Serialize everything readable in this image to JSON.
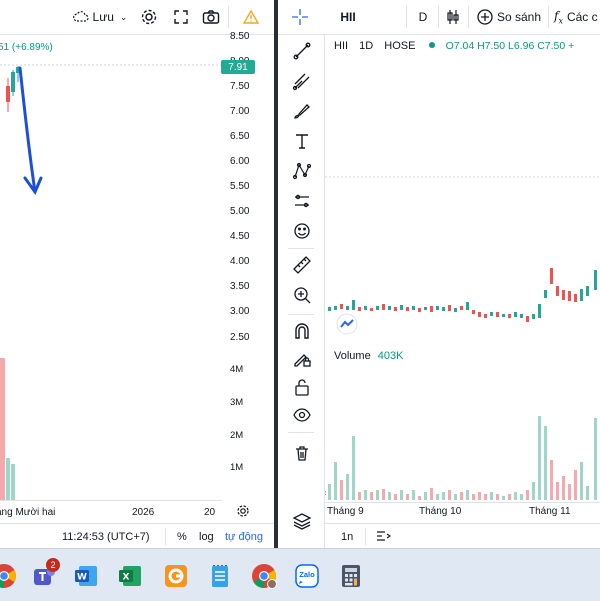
{
  "left": {
    "toolbar": {
      "save_label": "Lưu"
    },
    "legend": {
      "change": "51 (+6.89%)"
    },
    "price_axis": [
      "8.50",
      "8.00",
      "7.50",
      "7.00",
      "6.50",
      "6.00",
      "5.50",
      "5.00",
      "4.50",
      "4.00",
      "3.50",
      "3.00",
      "2.50"
    ],
    "current_price": "7.91",
    "volume_axis": [
      "4M",
      "3M",
      "2M",
      "1M"
    ],
    "time_axis": [
      "áng Mười hai",
      "2026",
      "20"
    ],
    "status": {
      "time": "11:24:53 (UTC+7)",
      "percent": "%",
      "log": "log",
      "auto": "tự động"
    }
  },
  "right": {
    "toolbar": {
      "symbol": "HII",
      "interval": "D",
      "compare_label": "So sánh",
      "indicators_label": "Các c"
    },
    "legend": {
      "symbol": "HII",
      "interval": "1D",
      "exchange": "HOSE",
      "ohlc": "O7.04 H7.50 L6.96 C7.50 +"
    },
    "volume_label": "Volume",
    "volume_value": "403K",
    "time_axis": [
      "Tháng 9",
      "Tháng 10",
      "Tháng 11"
    ],
    "status": {
      "range": "1n"
    }
  },
  "taskbar": {
    "teams_badge": "2",
    "apps": [
      {
        "name": "chrome-icon"
      },
      {
        "name": "teams-icon"
      },
      {
        "name": "word-icon"
      },
      {
        "name": "excel-icon"
      },
      {
        "name": "app-orange-icon"
      },
      {
        "name": "notepad-icon"
      },
      {
        "name": "chrome-profile-icon"
      },
      {
        "name": "zalo-icon"
      },
      {
        "name": "calculator-icon"
      }
    ],
    "zalo_label": "Zalo"
  },
  "colors": {
    "up": "#26a69a",
    "down": "#ef5350",
    "vol_up": "#9fd6c8",
    "vol_down": "#f5a9ad",
    "annotation": "#1e4fd8"
  }
}
